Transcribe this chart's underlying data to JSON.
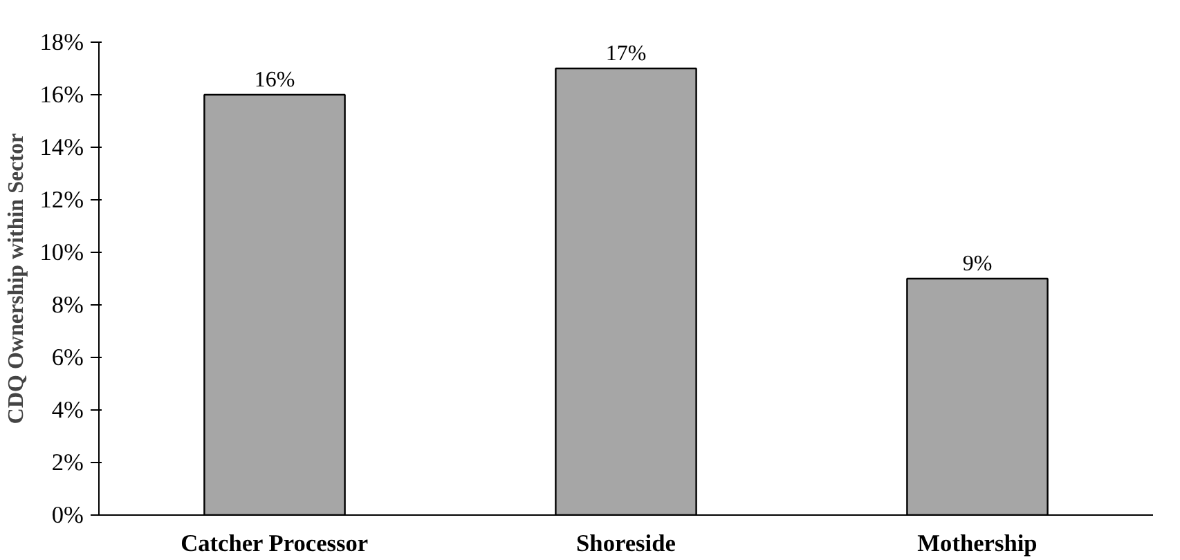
{
  "chart_data": {
    "type": "bar",
    "ylabel": "CDQ Ownership within Sector",
    "categories": [
      "Catcher Processor",
      "Shoreside",
      "Mothership"
    ],
    "values": [
      16,
      17,
      9
    ],
    "color": "#a6a6a6",
    "value_labels": [
      "16%",
      "17%",
      "9%"
    ],
    "ylim": [
      0,
      18
    ],
    "yticks": [
      {
        "value": 0,
        "label": "0%"
      },
      {
        "value": 2,
        "label": "2%"
      },
      {
        "value": 4,
        "label": "4%"
      },
      {
        "value": 6,
        "label": "6%"
      },
      {
        "value": 8,
        "label": "8%"
      },
      {
        "value": 10,
        "label": "10%"
      },
      {
        "value": 12,
        "label": "12%"
      },
      {
        "value": 14,
        "label": "14%"
      },
      {
        "value": 16,
        "label": "16%"
      },
      {
        "value": 18,
        "label": "18%"
      }
    ],
    "grid": false
  }
}
